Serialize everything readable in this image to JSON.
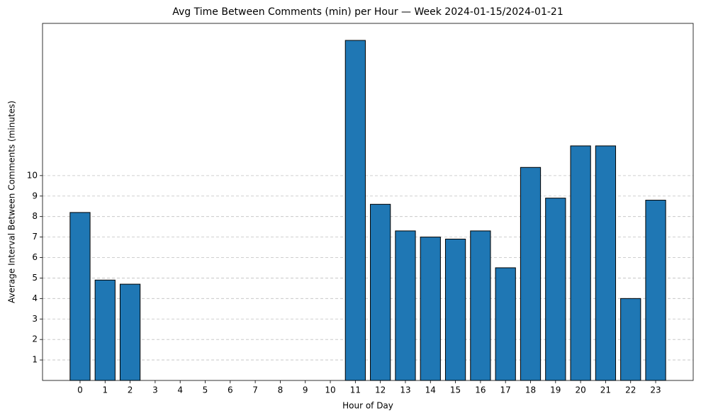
{
  "chart_data": {
    "type": "bar",
    "title": "Avg Time Between Comments (min) per Hour — Week 2024-01-15/2024-01-21",
    "x_label": "Hour of Day",
    "y_label": "Average Interval Between Comments (minutes)",
    "categories": [
      0,
      1,
      2,
      3,
      4,
      5,
      6,
      7,
      8,
      9,
      10,
      11,
      12,
      13,
      14,
      15,
      16,
      17,
      18,
      19,
      20,
      21,
      22,
      23
    ],
    "values": [
      8.2,
      4.9,
      4.7,
      0,
      0,
      0,
      0,
      0,
      0,
      0,
      0,
      16.6,
      8.6,
      7.3,
      7.0,
      6.9,
      7.3,
      5.5,
      10.4,
      8.9,
      11.45,
      11.45,
      4.0,
      8.8
    ],
    "color": "#1f77b4",
    "edge_color": "#000000",
    "ylim": [
      0,
      17.43
    ],
    "yticks": [
      1,
      2,
      3,
      4,
      5,
      6,
      7,
      8,
      9,
      10
    ],
    "grid": true
  }
}
